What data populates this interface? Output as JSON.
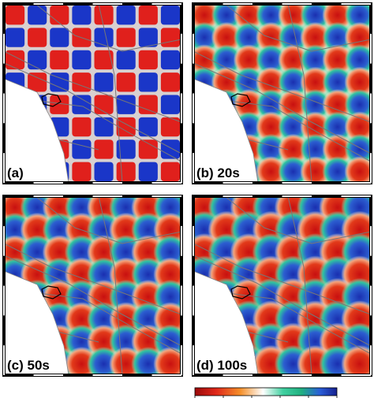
{
  "panels": [
    {
      "label": "(a)"
    },
    {
      "label": "(b) 20s"
    },
    {
      "label": "(c) 50s"
    },
    {
      "label": "(d) 100s"
    }
  ]
}
